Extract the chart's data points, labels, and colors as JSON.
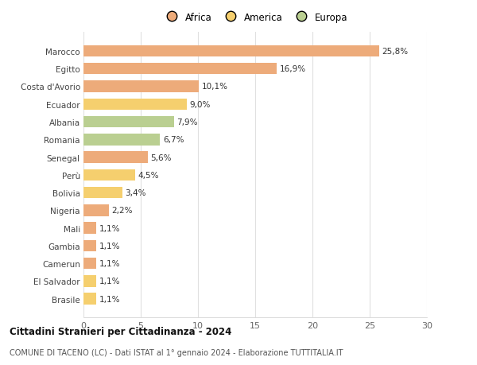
{
  "countries": [
    "Marocco",
    "Egitto",
    "Costa d'Avorio",
    "Ecuador",
    "Albania",
    "Romania",
    "Senegal",
    "Perù",
    "Bolivia",
    "Nigeria",
    "Mali",
    "Gambia",
    "Camerun",
    "El Salvador",
    "Brasile"
  ],
  "values": [
    25.8,
    16.9,
    10.1,
    9.0,
    7.9,
    6.7,
    5.6,
    4.5,
    3.4,
    2.2,
    1.1,
    1.1,
    1.1,
    1.1,
    1.1
  ],
  "labels": [
    "25,8%",
    "16,9%",
    "10,1%",
    "9,0%",
    "7,9%",
    "6,7%",
    "5,6%",
    "4,5%",
    "3,4%",
    "2,2%",
    "1,1%",
    "1,1%",
    "1,1%",
    "1,1%",
    "1,1%"
  ],
  "continents": [
    "Africa",
    "Africa",
    "Africa",
    "America",
    "Europa",
    "Europa",
    "Africa",
    "America",
    "America",
    "Africa",
    "Africa",
    "Africa",
    "Africa",
    "America",
    "America"
  ],
  "colors": {
    "Africa": "#EDAB7A",
    "America": "#F5CF6E",
    "Europa": "#BACF91"
  },
  "xlim": [
    0,
    30
  ],
  "xticks": [
    0,
    5,
    10,
    15,
    20,
    25,
    30
  ],
  "title": "Cittadini Stranieri per Cittadinanza - 2024",
  "subtitle": "COMUNE DI TACENO (LC) - Dati ISTAT al 1° gennaio 2024 - Elaborazione TUTTITALIA.IT",
  "background_color": "#ffffff",
  "grid_color": "#e0e0e0",
  "bar_height": 0.65,
  "label_fontsize": 7.5,
  "ytick_fontsize": 7.5,
  "xtick_fontsize": 8
}
